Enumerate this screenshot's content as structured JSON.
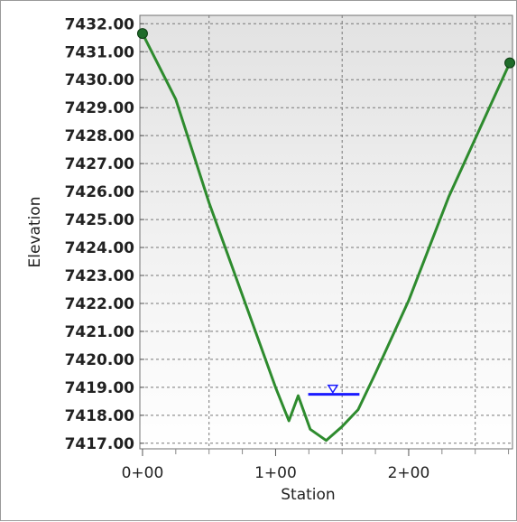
{
  "chart_data": {
    "type": "line",
    "xlabel": "Station",
    "ylabel": "Elevation",
    "xlim": [
      -2,
      278
    ],
    "ylim": [
      7416.8,
      7432.3
    ],
    "grid": true,
    "x_ticks": [
      {
        "value": 0,
        "label": "0+00"
      },
      {
        "value": 100,
        "label": "1+00"
      },
      {
        "value": 200,
        "label": "2+00"
      }
    ],
    "x_minor_ticks": [
      25,
      50,
      75,
      125,
      150,
      175,
      225,
      250,
      275
    ],
    "x_gridlines": [
      50,
      150,
      250
    ],
    "y_ticks": [
      {
        "value": 7417,
        "label": "7417.00"
      },
      {
        "value": 7418,
        "label": "7418.00"
      },
      {
        "value": 7419,
        "label": "7419.00"
      },
      {
        "value": 7420,
        "label": "7420.00"
      },
      {
        "value": 7421,
        "label": "7421.00"
      },
      {
        "value": 7422,
        "label": "7422.00"
      },
      {
        "value": 7423,
        "label": "7423.00"
      },
      {
        "value": 7424,
        "label": "7424.00"
      },
      {
        "value": 7425,
        "label": "7425.00"
      },
      {
        "value": 7426,
        "label": "7426.00"
      },
      {
        "value": 7427,
        "label": "7427.00"
      },
      {
        "value": 7428,
        "label": "7428.00"
      },
      {
        "value": 7429,
        "label": "7429.00"
      },
      {
        "value": 7430,
        "label": "7430.00"
      },
      {
        "value": 7431,
        "label": "7431.00"
      },
      {
        "value": 7432,
        "label": "7432.00"
      }
    ],
    "series": [
      {
        "color": "#2e8b2e",
        "x": [
          0,
          25,
          50,
          75,
          100,
          110,
          117,
          126,
          138,
          150,
          162,
          175,
          200,
          230,
          276
        ],
        "y": [
          7431.65,
          7429.3,
          7425.6,
          7422.3,
          7419.0,
          7417.8,
          7418.7,
          7417.5,
          7417.1,
          7417.6,
          7418.2,
          7419.5,
          7422.1,
          7425.8,
          7430.6
        ]
      }
    ],
    "endpoints": [
      {
        "x": 0,
        "y": 7431.65
      },
      {
        "x": 276,
        "y": 7430.6
      }
    ],
    "water_surface": {
      "color": "#1a1aff",
      "elevation": 7418.75,
      "x_start": 124.5,
      "x_end": 163,
      "marker_x": 143
    }
  }
}
